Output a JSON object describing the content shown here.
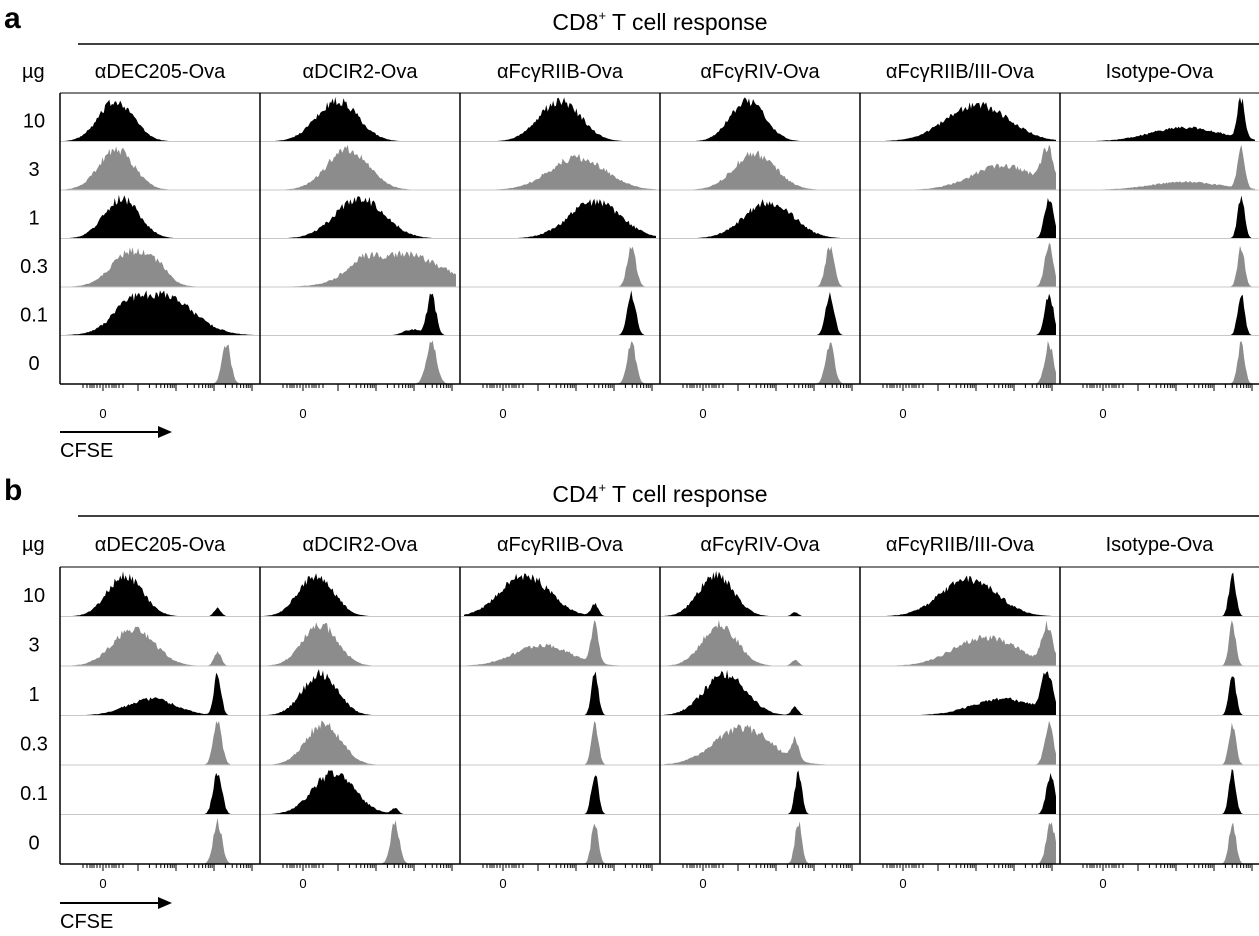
{
  "colors": {
    "black": "#000000",
    "gray": "#8c8c8c",
    "divider": "#c8c8c8"
  },
  "dose_header": "µg",
  "x_tick_label": "0",
  "x_axis_label": "CFSE",
  "panels": [
    {
      "letter": "a",
      "title_main": "CD8",
      "title_sup": "+",
      "title_rest": " T cell response",
      "columns": [
        "αDEC205-Ova",
        "αDCIR2-Ova",
        "αFcγRIIB-Ova",
        "αFcγRIV-Ova",
        "αFcγRIIB/III-Ova",
        "Isotype-Ova"
      ],
      "doses": [
        "10",
        "3",
        "1",
        "0.3",
        "0.1",
        "0"
      ]
    },
    {
      "letter": "b",
      "title_main": "CD4",
      "title_sup": "+",
      "title_rest": " T cell response",
      "columns": [
        "αDEC205-Ova",
        "αDCIR2-Ova",
        "αFcγRIIB-Ova",
        "αFcγRIV-Ova",
        "αFcγRIIB/III-Ova",
        "Isotype-Ova"
      ],
      "doses": [
        "10",
        "3",
        "1",
        "0.3",
        "0.1",
        "0"
      ]
    }
  ],
  "chart_data": [
    {
      "type": "area",
      "title": "CD8+ T cell response",
      "xlabel": "CFSE",
      "ylabel": "µg",
      "columns": [
        "αDEC205-Ova",
        "αDCIR2-Ova",
        "αFcγRIIB-Ova",
        "αFcγRIV-Ova",
        "αFcγRIIB/III-Ova",
        "Isotype-Ova"
      ],
      "doses": [
        "10",
        "3",
        "1",
        "0.3",
        "0.1",
        "0"
      ],
      "histograms": [
        [
          [
            {
              "c": 0.3,
              "w": 0.1,
              "h": 1.0
            }
          ],
          [
            {
              "c": 0.3,
              "w": 0.1,
              "h": 1.0
            }
          ],
          [
            {
              "c": 0.33,
              "w": 0.1,
              "h": 1.0
            }
          ],
          [
            {
              "c": 0.4,
              "w": 0.12,
              "h": 0.9
            },
            {
              "c": 0.55,
              "w": 0.05,
              "h": 0.2
            }
          ],
          [
            {
              "c": 0.55,
              "w": 0.18,
              "h": 1.0
            },
            {
              "c": 0.35,
              "w": 0.08,
              "h": 0.3
            }
          ],
          [
            {
              "c": 0.93,
              "w": 0.025,
              "h": 1.0
            }
          ]
        ],
        [
          [
            {
              "c": 0.42,
              "w": 0.12,
              "h": 1.0
            }
          ],
          [
            {
              "c": 0.48,
              "w": 0.12,
              "h": 1.0
            }
          ],
          [
            {
              "c": 0.55,
              "w": 0.14,
              "h": 1.0
            }
          ],
          [
            {
              "c": 0.8,
              "w": 0.22,
              "h": 0.8
            },
            {
              "c": 0.55,
              "w": 0.08,
              "h": 0.3
            }
          ],
          [
            {
              "c": 0.96,
              "w": 0.025,
              "h": 1.0
            },
            {
              "c": 0.85,
              "w": 0.05,
              "h": 0.15
            }
          ],
          [
            {
              "c": 0.96,
              "w": 0.03,
              "h": 1.0
            }
          ]
        ],
        [
          [
            {
              "c": 0.55,
              "w": 0.12,
              "h": 1.0
            }
          ],
          [
            {
              "c": 0.65,
              "w": 0.16,
              "h": 0.8
            }
          ],
          [
            {
              "c": 0.75,
              "w": 0.15,
              "h": 0.9
            }
          ],
          [
            {
              "c": 0.96,
              "w": 0.025,
              "h": 1.0
            }
          ],
          [
            {
              "c": 0.96,
              "w": 0.025,
              "h": 1.0
            }
          ],
          [
            {
              "c": 0.96,
              "w": 0.025,
              "h": 1.0
            }
          ]
        ],
        [
          [
            {
              "c": 0.48,
              "w": 0.1,
              "h": 1.0
            }
          ],
          [
            {
              "c": 0.52,
              "w": 0.12,
              "h": 0.9
            }
          ],
          [
            {
              "c": 0.6,
              "w": 0.14,
              "h": 0.9
            }
          ],
          [
            {
              "c": 0.95,
              "w": 0.025,
              "h": 1.0
            }
          ],
          [
            {
              "c": 0.95,
              "w": 0.025,
              "h": 1.0
            }
          ],
          [
            {
              "c": 0.95,
              "w": 0.025,
              "h": 1.0
            }
          ]
        ],
        [
          [
            {
              "c": 0.65,
              "w": 0.18,
              "h": 0.9
            }
          ],
          [
            {
              "c": 0.8,
              "w": 0.18,
              "h": 0.6
            },
            {
              "c": 1.05,
              "w": 0.03,
              "h": 0.9
            }
          ],
          [
            {
              "c": 1.06,
              "w": 0.025,
              "h": 1.0
            }
          ],
          [
            {
              "c": 1.06,
              "w": 0.025,
              "h": 1.0
            }
          ],
          [
            {
              "c": 1.06,
              "w": 0.025,
              "h": 1.0
            }
          ],
          [
            {
              "c": 1.06,
              "w": 0.025,
              "h": 1.0
            }
          ]
        ],
        [
          [
            {
              "c": 0.7,
              "w": 0.2,
              "h": 0.35
            },
            {
              "c": 1.02,
              "w": 0.02,
              "h": 1.0
            }
          ],
          [
            {
              "c": 0.7,
              "w": 0.2,
              "h": 0.2
            },
            {
              "c": 1.02,
              "w": 0.02,
              "h": 1.0
            }
          ],
          [
            {
              "c": 1.02,
              "w": 0.02,
              "h": 1.0
            }
          ],
          [
            {
              "c": 1.02,
              "w": 0.02,
              "h": 1.0
            }
          ],
          [
            {
              "c": 1.02,
              "w": 0.02,
              "h": 1.0
            }
          ],
          [
            {
              "c": 1.02,
              "w": 0.02,
              "h": 1.0
            }
          ]
        ]
      ]
    },
    {
      "type": "area",
      "title": "CD4+ T cell response",
      "xlabel": "CFSE",
      "ylabel": "µg",
      "columns": [
        "αDEC205-Ova",
        "αDCIR2-Ova",
        "αFcγRIIB-Ova",
        "αFcγRIV-Ova",
        "αFcγRIIB/III-Ova",
        "Isotype-Ova"
      ],
      "doses": [
        "10",
        "3",
        "1",
        "0.3",
        "0.1",
        "0"
      ],
      "histograms": [
        [
          [
            {
              "c": 0.35,
              "w": 0.1,
              "h": 1.0
            },
            {
              "c": 0.88,
              "w": 0.02,
              "h": 0.2
            }
          ],
          [
            {
              "c": 0.4,
              "w": 0.12,
              "h": 0.9
            },
            {
              "c": 0.88,
              "w": 0.02,
              "h": 0.35
            }
          ],
          [
            {
              "c": 0.5,
              "w": 0.14,
              "h": 0.4
            },
            {
              "c": 0.88,
              "w": 0.02,
              "h": 1.0
            }
          ],
          [
            {
              "c": 0.88,
              "w": 0.025,
              "h": 1.0
            }
          ],
          [
            {
              "c": 0.88,
              "w": 0.025,
              "h": 1.0
            }
          ],
          [
            {
              "c": 0.88,
              "w": 0.025,
              "h": 1.0
            }
          ]
        ],
        [
          [
            {
              "c": 0.3,
              "w": 0.1,
              "h": 1.0
            }
          ],
          [
            {
              "c": 0.32,
              "w": 0.1,
              "h": 1.0
            }
          ],
          [
            {
              "c": 0.32,
              "w": 0.1,
              "h": 1.0
            }
          ],
          [
            {
              "c": 0.34,
              "w": 0.1,
              "h": 1.0
            }
          ],
          [
            {
              "c": 0.4,
              "w": 0.12,
              "h": 1.0
            },
            {
              "c": 0.75,
              "w": 0.02,
              "h": 0.15
            }
          ],
          [
            {
              "c": 0.75,
              "w": 0.025,
              "h": 1.0
            }
          ]
        ],
        [
          [
            {
              "c": 0.35,
              "w": 0.14,
              "h": 1.0
            },
            {
              "c": 0.75,
              "w": 0.02,
              "h": 0.3
            }
          ],
          [
            {
              "c": 0.45,
              "w": 0.16,
              "h": 0.5
            },
            {
              "c": 0.75,
              "w": 0.02,
              "h": 1.0
            }
          ],
          [
            {
              "c": 0.75,
              "w": 0.02,
              "h": 1.0
            }
          ],
          [
            {
              "c": 0.75,
              "w": 0.02,
              "h": 1.0
            }
          ],
          [
            {
              "c": 0.75,
              "w": 0.02,
              "h": 1.0
            }
          ],
          [
            {
              "c": 0.75,
              "w": 0.02,
              "h": 1.0
            }
          ]
        ],
        [
          [
            {
              "c": 0.3,
              "w": 0.1,
              "h": 1.0
            },
            {
              "c": 0.75,
              "w": 0.02,
              "h": 0.1
            }
          ],
          [
            {
              "c": 0.32,
              "w": 0.1,
              "h": 1.0
            },
            {
              "c": 0.75,
              "w": 0.02,
              "h": 0.15
            }
          ],
          [
            {
              "c": 0.35,
              "w": 0.12,
              "h": 1.0
            },
            {
              "c": 0.75,
              "w": 0.02,
              "h": 0.2
            }
          ],
          [
            {
              "c": 0.45,
              "w": 0.16,
              "h": 0.9
            },
            {
              "c": 0.75,
              "w": 0.02,
              "h": 0.5
            }
          ],
          [
            {
              "c": 0.77,
              "w": 0.02,
              "h": 1.0
            }
          ],
          [
            {
              "c": 0.77,
              "w": 0.02,
              "h": 1.0
            }
          ]
        ],
        [
          [
            {
              "c": 0.6,
              "w": 0.16,
              "h": 0.9
            }
          ],
          [
            {
              "c": 0.7,
              "w": 0.18,
              "h": 0.7
            },
            {
              "c": 1.05,
              "w": 0.03,
              "h": 0.9
            }
          ],
          [
            {
              "c": 0.8,
              "w": 0.18,
              "h": 0.4
            },
            {
              "c": 1.05,
              "w": 0.03,
              "h": 1.0
            }
          ],
          [
            {
              "c": 1.06,
              "w": 0.025,
              "h": 1.0
            }
          ],
          [
            {
              "c": 1.07,
              "w": 0.025,
              "h": 1.0
            }
          ],
          [
            {
              "c": 1.07,
              "w": 0.025,
              "h": 1.0
            }
          ]
        ],
        [
          [
            {
              "c": 0.97,
              "w": 0.02,
              "h": 1.0
            }
          ],
          [
            {
              "c": 0.97,
              "w": 0.02,
              "h": 1.0
            }
          ],
          [
            {
              "c": 0.97,
              "w": 0.02,
              "h": 1.0
            }
          ],
          [
            {
              "c": 0.97,
              "w": 0.02,
              "h": 1.0
            }
          ],
          [
            {
              "c": 0.97,
              "w": 0.02,
              "h": 1.0
            }
          ],
          [
            {
              "c": 0.97,
              "w": 0.02,
              "h": 1.0
            }
          ]
        ]
      ]
    }
  ]
}
